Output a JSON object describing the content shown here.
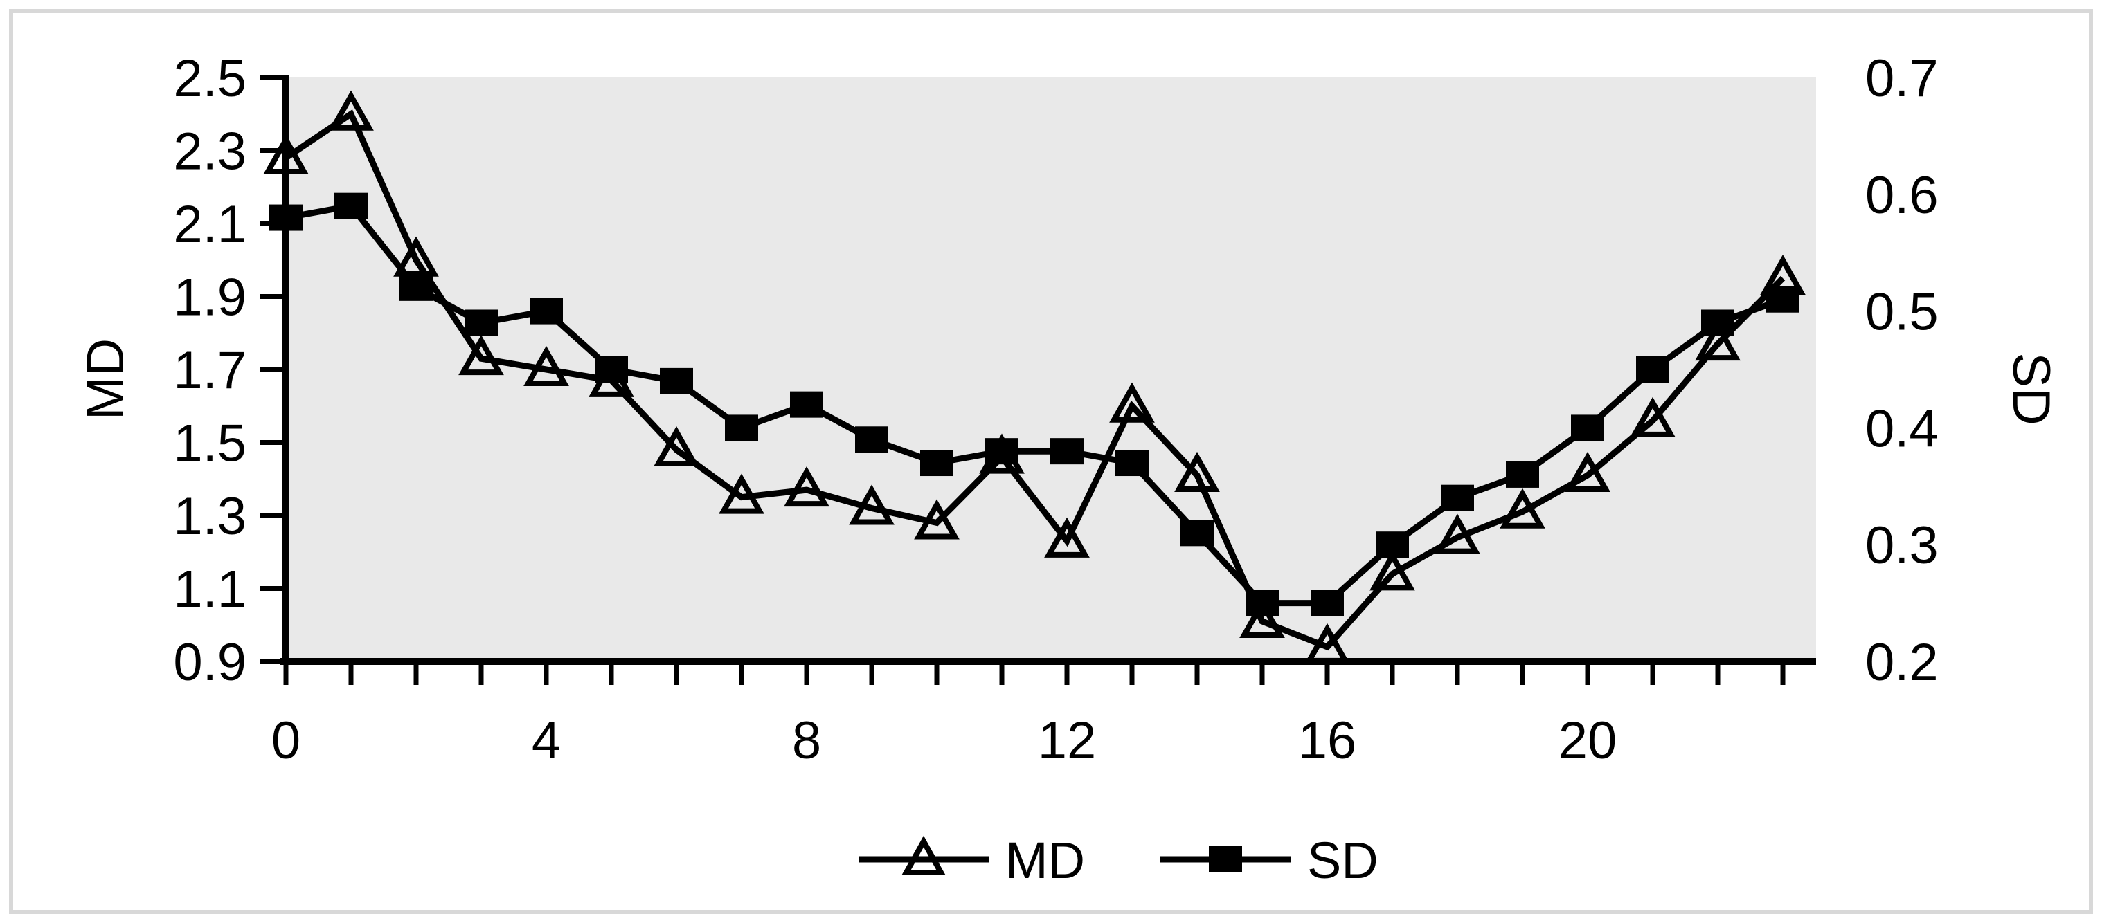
{
  "chart_data": {
    "type": "line",
    "title": "",
    "xlabel": "",
    "ylabel_left": "MD",
    "ylabel_right": "SD",
    "x": [
      0,
      1,
      2,
      3,
      4,
      5,
      6,
      7,
      8,
      9,
      10,
      11,
      12,
      13,
      14,
      15,
      16,
      17,
      18,
      19,
      20,
      21,
      22,
      23
    ],
    "x_axis": {
      "tick_step": 1,
      "labeled_ticks": [
        0,
        4,
        8,
        12,
        16,
        20
      ],
      "labels": [
        "0",
        "4",
        "8",
        "12",
        "16",
        "20"
      ]
    },
    "left_axis": {
      "min": 0.9,
      "max": 2.5,
      "step": 0.2,
      "tick_labels": [
        "2.5",
        "2.3",
        "2.1",
        "1.9",
        "1.7",
        "1.5",
        "1.3",
        "1.1",
        "0.9"
      ]
    },
    "right_axis": {
      "min": 0.2,
      "max": 0.7,
      "step": 0.1,
      "tick_labels": [
        "0.7",
        "0.6",
        "0.5",
        "0.4",
        "0.3",
        "0.2"
      ]
    },
    "series": [
      {
        "name": "MD",
        "axis": "left",
        "marker": "open-triangle",
        "color": "#000000",
        "values": [
          2.28,
          2.4,
          2.0,
          1.73,
          1.7,
          1.67,
          1.48,
          1.35,
          1.37,
          1.32,
          1.28,
          1.46,
          1.23,
          1.6,
          1.41,
          1.01,
          0.94,
          1.14,
          1.24,
          1.31,
          1.41,
          1.56,
          1.77,
          1.95
        ]
      },
      {
        "name": "SD",
        "axis": "right",
        "marker": "filled-square",
        "color": "#000000",
        "values": [
          0.58,
          0.59,
          0.52,
          0.49,
          0.5,
          0.45,
          0.44,
          0.4,
          0.42,
          0.39,
          0.37,
          0.38,
          0.38,
          0.37,
          0.31,
          0.25,
          0.25,
          0.3,
          0.34,
          0.36,
          0.4,
          0.45,
          0.49,
          0.51
        ]
      }
    ],
    "legend": [
      {
        "label": "MD",
        "marker": "open-triangle"
      },
      {
        "label": "SD",
        "marker": "filled-square"
      }
    ],
    "layout": {
      "legend_position": "bottom-center",
      "grid": false
    },
    "colors": {
      "plot_background": "#e9e9e9",
      "line": "#000000",
      "figure_border": "#d8d8d8",
      "page_background": "#ffffff"
    }
  }
}
